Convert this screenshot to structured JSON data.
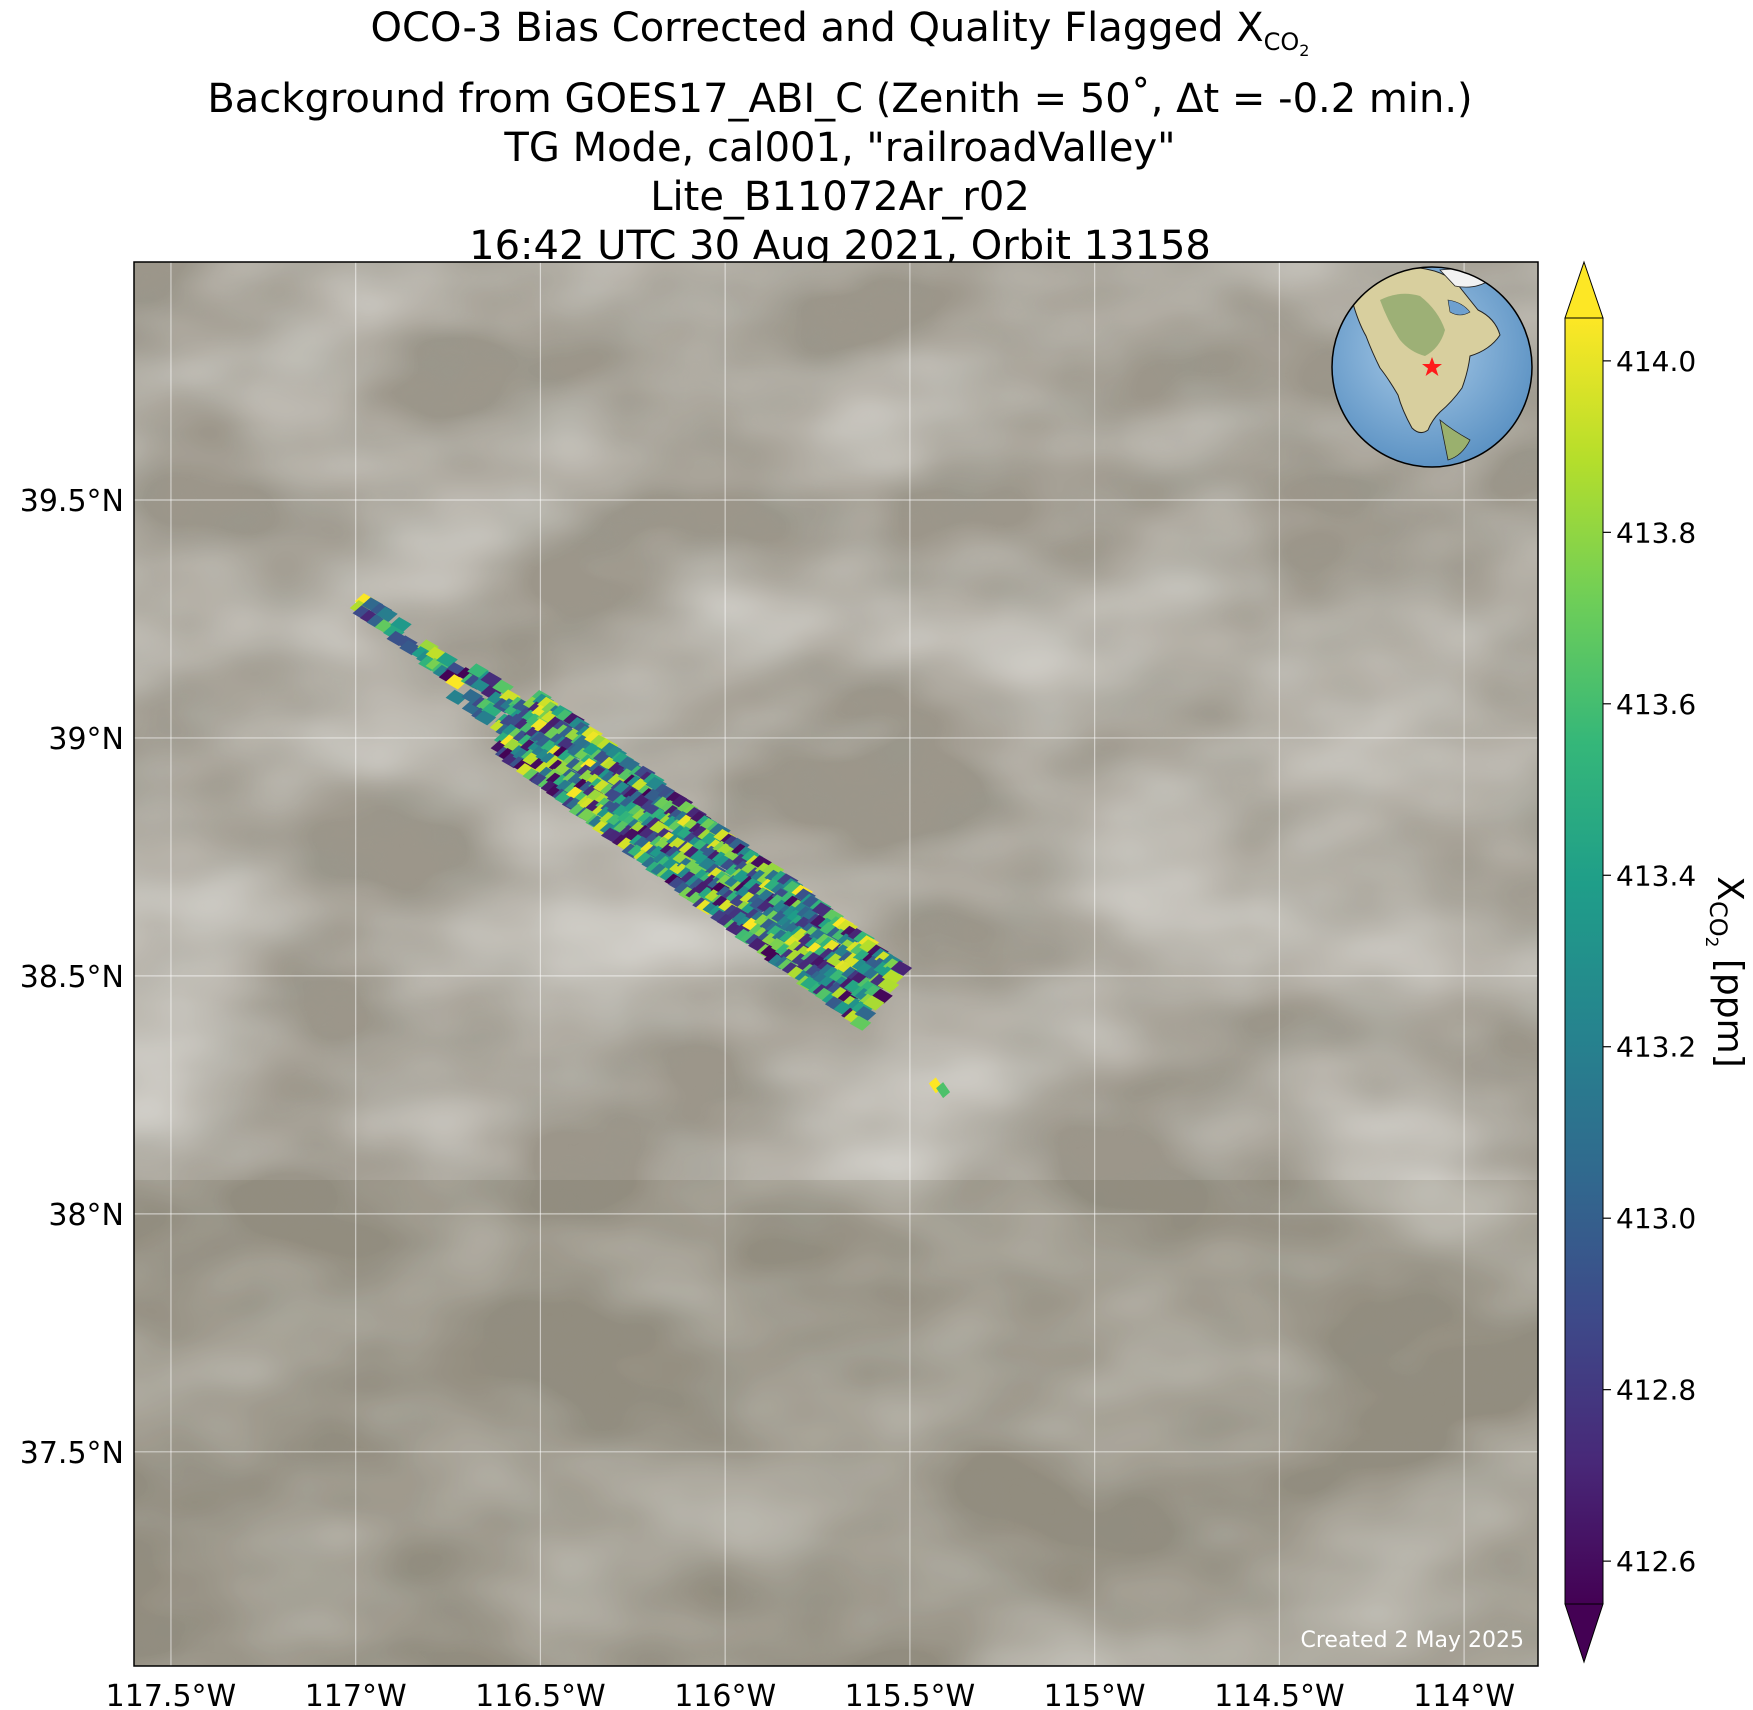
{
  "title": {
    "line1_prefix": "OCO-3 Bias Corrected and Quality Flagged X",
    "line1_sub": "CO",
    "line1_sub2": "2",
    "line2": "Background from GOES17_ABI_C (Zenith = 50$^\\circ$, Δt = -0.2 min.)",
    "line2_display": "Background from GOES17_ABI_C (Zenith = 50˚, Δt = -0.2 min.)",
    "line3": "TG Mode, cal001, \"railroadValley\"",
    "line4": "Lite_B11072Ar_r02",
    "line5": "16:42 UTC 30 Aug 2021, Orbit 13158"
  },
  "credit": "Created 2 May 2025",
  "colorbar": {
    "label_prefix": "X",
    "label_sub": "CO",
    "label_sub2": "2",
    "label_units": " [ppm]",
    "ticks": [
      "414.0",
      "413.8",
      "413.6",
      "413.4",
      "413.2",
      "413.0",
      "412.8",
      "412.6"
    ],
    "colormap": "viridis",
    "range": [
      412.55,
      414.05
    ],
    "extend": "both"
  },
  "inset_globe": {
    "marker": "red star",
    "region": "North America"
  },
  "chart_data": {
    "type": "scatter",
    "title": "OCO-3 Bias Corrected and Quality Flagged XCO2",
    "xlabel": "",
    "ylabel": "",
    "xlim": [
      -117.6,
      -113.8
    ],
    "ylim": [
      37.05,
      40.0
    ],
    "x_ticks": [
      "117.5°W",
      "117°W",
      "116.5°W",
      "116°W",
      "115.5°W",
      "115°W",
      "114.5°W",
      "114°W"
    ],
    "x_tick_values": [
      -117.5,
      -117.0,
      -116.5,
      -116.0,
      -115.5,
      -115.0,
      -114.5,
      -114.0
    ],
    "y_ticks": [
      "39.5°N",
      "39°N",
      "38.5°N",
      "38°N",
      "37.5°N"
    ],
    "y_tick_values": [
      39.5,
      39.0,
      38.5,
      38.0,
      37.5
    ],
    "grid": true,
    "swath": {
      "description": "OCO-3 target-mode soundings along a NW-SE swath",
      "start": [
        -116.98,
        39.28
      ],
      "end": [
        -115.58,
        38.46
      ],
      "value_range": [
        412.6,
        414.0
      ]
    },
    "isolated_soundings": [
      {
        "lon": -115.43,
        "lat": 38.27,
        "value": 414.0
      },
      {
        "lon": -115.41,
        "lat": 38.26,
        "value": 413.6
      }
    ]
  }
}
